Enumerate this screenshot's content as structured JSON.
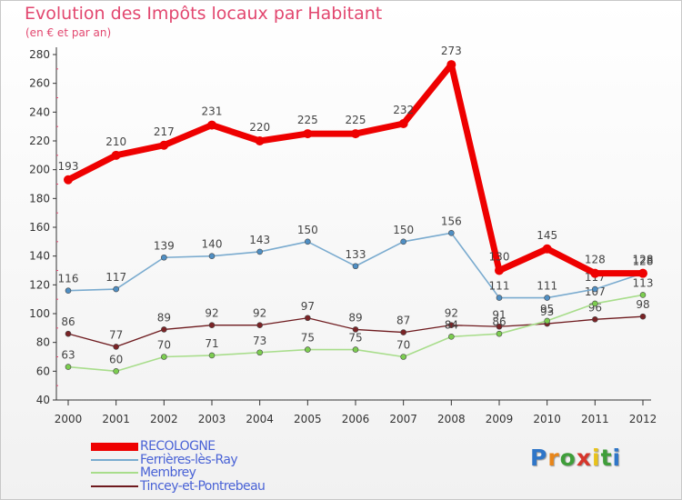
{
  "chart_data": {
    "type": "line",
    "title": "Evolution des Impôts locaux par Habitant",
    "subtitle": "(en € et par an)",
    "xlabel": "",
    "ylabel": "",
    "ylim": [
      40,
      280
    ],
    "yticks": [
      40,
      60,
      80,
      100,
      120,
      140,
      160,
      180,
      200,
      220,
      240,
      260,
      280
    ],
    "grid": false,
    "legend_position": "bottom-left",
    "categories": [
      "2000",
      "2001",
      "2002",
      "2003",
      "2004",
      "2005",
      "2006",
      "2007",
      "2008",
      "2009",
      "2010",
      "2011",
      "2012"
    ],
    "series": [
      {
        "name": "Tincey-et-Pontrebeau",
        "color": "#6e1a1e",
        "marker_color": "#7a2326",
        "width": 1.3,
        "values": [
          86,
          77,
          89,
          92,
          92,
          97,
          89,
          87,
          92,
          91,
          93,
          96,
          98
        ],
        "labels": [
          "86",
          "77",
          "89",
          "92",
          "92",
          "97",
          "89",
          "87",
          "92",
          "91",
          "93",
          "96",
          "98"
        ]
      },
      {
        "name": "Membrey",
        "color": "#a8dd8b",
        "marker_color": "#7ccd50",
        "width": 1.6,
        "values": [
          63,
          60,
          70,
          71,
          73,
          75,
          75,
          70,
          84,
          86,
          95,
          107,
          113
        ],
        "labels": [
          "63",
          "60",
          "70",
          "71",
          "73",
          "75",
          "75",
          "70",
          "84",
          "86",
          "95",
          "107",
          "113"
        ]
      },
      {
        "name": "Ferrières-lès-Ray",
        "color": "#7aabcf",
        "marker_color": "#4f8fc4",
        "width": 1.6,
        "values": [
          116,
          117,
          139,
          140,
          143,
          150,
          133,
          150,
          156,
          111,
          111,
          117,
          128
        ],
        "labels": [
          "116",
          "117",
          "139",
          "140",
          "143",
          "150",
          "133",
          "150",
          "156",
          "111",
          "111",
          "117",
          "128"
        ]
      },
      {
        "name": "RECOLOGNE",
        "color": "#ee0000",
        "marker_color": "#ee0000",
        "width": 7,
        "values": [
          193,
          210,
          217,
          231,
          220,
          225,
          225,
          232,
          273,
          130,
          145,
          128,
          128
        ],
        "labels": [
          "193",
          "210",
          "217",
          "231",
          "220",
          "225",
          "225",
          "232",
          "273",
          "130",
          "145",
          "128",
          "128"
        ]
      }
    ]
  },
  "legend": {
    "items": [
      {
        "name": "RECOLOGNE",
        "color": "#ee0000",
        "text_color": "#4a63d6",
        "thickness": 9
      },
      {
        "name": "Ferrières-lès-Ray",
        "color": "#7aabcf",
        "text_color": "#4a63d6",
        "thickness": 2
      },
      {
        "name": "Membrey",
        "color": "#a8dd8b",
        "text_color": "#4a63d6",
        "thickness": 2
      },
      {
        "name": "Tincey-et-Pontrebeau",
        "color": "#6e1a1e",
        "text_color": "#4a63d6",
        "thickness": 2
      }
    ]
  },
  "logo": {
    "letters": [
      {
        "ch": "P",
        "color": "#2f76c8"
      },
      {
        "ch": "r",
        "color": "#e8861a"
      },
      {
        "ch": "o",
        "color": "#3f9e3a"
      },
      {
        "ch": "x",
        "color": "#d6352b"
      },
      {
        "ch": "i",
        "color": "#e8c21a"
      },
      {
        "ch": "t",
        "color": "#3f9e3a"
      },
      {
        "ch": "i",
        "color": "#2f76c8"
      }
    ]
  }
}
